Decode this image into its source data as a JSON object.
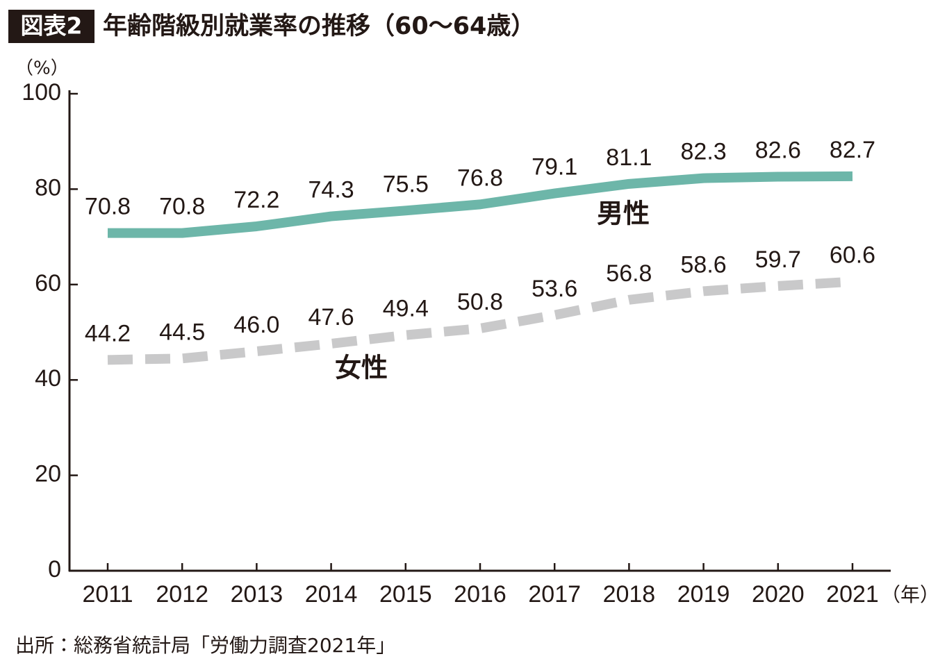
{
  "chart_data": {
    "type": "line",
    "figure_label": "図表2",
    "title": "年齢階級別就業率の推移（60〜64歳）",
    "y_label": "（%）",
    "x_label": "（年）",
    "source": "出所：総務省統計局「労働力調査2021年」",
    "categories": [
      "2011",
      "2012",
      "2013",
      "2014",
      "2015",
      "2016",
      "2017",
      "2018",
      "2019",
      "2020",
      "2021"
    ],
    "series": [
      {
        "name": "男性",
        "color": "#6db6a9",
        "dashed": false,
        "values": [
          70.8,
          70.8,
          72.2,
          74.3,
          75.5,
          76.8,
          79.1,
          81.1,
          82.3,
          82.6,
          82.7
        ],
        "value_labels": [
          "70.8",
          "70.8",
          "72.2",
          "74.3",
          "75.5",
          "76.8",
          "79.1",
          "81.1",
          "82.3",
          "82.6",
          "82.7"
        ]
      },
      {
        "name": "女性",
        "color": "#c9c9ca",
        "dashed": true,
        "values": [
          44.2,
          44.5,
          46.0,
          47.6,
          49.4,
          50.8,
          53.6,
          56.8,
          58.6,
          59.7,
          60.6
        ],
        "value_labels": [
          "44.2",
          "44.5",
          "46.0",
          "47.6",
          "49.4",
          "50.8",
          "53.6",
          "56.8",
          "58.6",
          "59.7",
          "60.6"
        ]
      }
    ],
    "ylim": [
      0,
      100
    ],
    "yticks": [
      0,
      20,
      40,
      60,
      80,
      100
    ],
    "grid": false
  }
}
